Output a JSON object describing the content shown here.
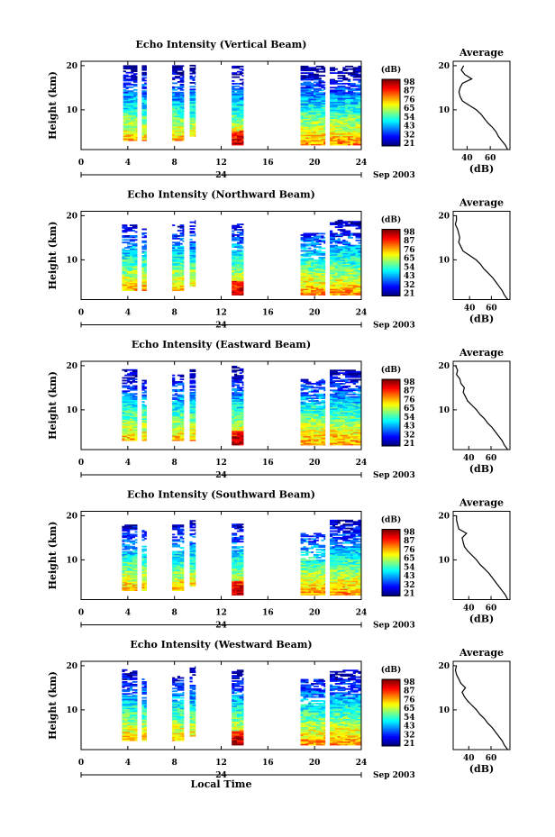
{
  "chart_data": [
    {
      "type": "heatmap",
      "title": "Echo Intensity (Vertical Beam)",
      "ylabel": "Height (km)",
      "ylim": [
        1,
        21
      ],
      "yticks": [
        10,
        20
      ],
      "xlim": [
        0,
        24
      ],
      "xticks": [
        0,
        4,
        8,
        12,
        16,
        20,
        24
      ],
      "date_marker": "24",
      "date_suffix": "Sep 2003",
      "colorbar": {
        "unit": "(dB)",
        "labels": [
          "98",
          "87",
          "76",
          "65",
          "54",
          "43",
          "32",
          "21"
        ]
      },
      "blocks": [
        [
          3.6,
          4.8,
          3,
          20
        ],
        [
          5.2,
          5.6,
          3,
          20
        ],
        [
          7.8,
          8.8,
          3,
          20
        ],
        [
          9.3,
          9.8,
          4,
          20
        ],
        [
          12.9,
          13.9,
          2,
          20
        ],
        [
          18.8,
          20.9,
          2,
          20
        ],
        [
          21.3,
          24.0,
          2,
          20
        ]
      ],
      "profile": {
        "title": "Average",
        "xlabel": "(dB)",
        "xticks": [
          40,
          60
        ],
        "xlim": [
          28,
          77
        ],
        "ylim": [
          1,
          21
        ],
        "yticks": [
          10,
          20
        ],
        "heights": [
          1,
          2,
          3,
          4,
          5,
          6,
          7,
          8,
          9,
          10,
          11,
          12,
          13,
          14,
          15,
          16,
          17,
          18,
          19,
          20
        ],
        "values": [
          75,
          73,
          70,
          67,
          65,
          62,
          58,
          55,
          52,
          48,
          42,
          36,
          34,
          33,
          34,
          36,
          44,
          38,
          35,
          37
        ]
      }
    },
    {
      "type": "heatmap",
      "title": "Echo Intensity (Northward Beam)",
      "ylabel": "Height (km)",
      "ylim": [
        1,
        21
      ],
      "yticks": [
        10,
        20
      ],
      "xlim": [
        0,
        24
      ],
      "xticks": [
        0,
        4,
        8,
        12,
        16,
        20,
        24
      ],
      "date_marker": "24",
      "date_suffix": "Sep 2003",
      "colorbar": {
        "unit": "(dB)",
        "labels": [
          "98",
          "87",
          "76",
          "65",
          "54",
          "43",
          "32",
          "21"
        ]
      },
      "blocks": [
        [
          3.5,
          4.8,
          3,
          18
        ],
        [
          5.2,
          5.6,
          3,
          17
        ],
        [
          7.8,
          8.8,
          3,
          18
        ],
        [
          9.3,
          9.8,
          4,
          19
        ],
        [
          12.9,
          13.9,
          2,
          18
        ],
        [
          18.8,
          20.9,
          2,
          16
        ],
        [
          21.3,
          24.0,
          2,
          19
        ]
      ],
      "profile": {
        "title": "Average",
        "xlabel": "(dB)",
        "xticks": [
          40,
          60
        ],
        "xlim": [
          25,
          77
        ],
        "ylim": [
          1,
          21
        ],
        "yticks": [
          10,
          20
        ],
        "heights": [
          1,
          2,
          3,
          4,
          5,
          6,
          7,
          8,
          9,
          10,
          11,
          12,
          13,
          14,
          15,
          16,
          17,
          18,
          19,
          20
        ],
        "values": [
          75,
          72,
          70,
          67,
          64,
          61,
          57,
          53,
          50,
          46,
          40,
          34,
          32,
          30,
          31,
          30,
          29,
          27,
          28,
          28
        ]
      }
    },
    {
      "type": "heatmap",
      "title": "Echo Intensity (Eastward Beam)",
      "ylabel": "Height (km)",
      "ylim": [
        1,
        21
      ],
      "yticks": [
        10,
        20
      ],
      "xlim": [
        0,
        24
      ],
      "xticks": [
        0,
        4,
        8,
        12,
        16,
        20,
        24
      ],
      "date_marker": "24",
      "date_suffix": "Sep 2003",
      "colorbar": {
        "unit": "(dB)",
        "labels": [
          "98",
          "87",
          "76",
          "65",
          "54",
          "43",
          "32",
          "21"
        ]
      },
      "blocks": [
        [
          3.5,
          4.8,
          3,
          19
        ],
        [
          5.2,
          5.6,
          3,
          17
        ],
        [
          7.8,
          8.8,
          3,
          18
        ],
        [
          9.3,
          9.8,
          3,
          19
        ],
        [
          12.9,
          13.9,
          2,
          20
        ],
        [
          18.8,
          20.9,
          2,
          17
        ],
        [
          21.3,
          24.0,
          2,
          19
        ]
      ],
      "profile": {
        "title": "Average",
        "xlabel": "(dB)",
        "xticks": [
          40,
          60
        ],
        "xlim": [
          26,
          77
        ],
        "ylim": [
          1,
          21
        ],
        "yticks": [
          10,
          20
        ],
        "heights": [
          1,
          2,
          3,
          4,
          5,
          6,
          7,
          8,
          9,
          10,
          11,
          12,
          13,
          14,
          15,
          16,
          17,
          18,
          19,
          20
        ],
        "values": [
          75,
          72,
          70,
          67,
          64,
          61,
          57,
          54,
          50,
          47,
          43,
          39,
          37,
          35,
          36,
          33,
          32,
          29,
          30,
          28
        ]
      }
    },
    {
      "type": "heatmap",
      "title": "Echo Intensity (Southward Beam)",
      "ylabel": "Height (km)",
      "ylim": [
        1,
        21
      ],
      "yticks": [
        10,
        20
      ],
      "xlim": [
        0,
        24
      ],
      "xticks": [
        0,
        4,
        8,
        12,
        16,
        20,
        24
      ],
      "date_marker": "24",
      "date_suffix": "Sep 2003",
      "colorbar": {
        "unit": "(dB)",
        "labels": [
          "98",
          "87",
          "76",
          "65",
          "54",
          "43",
          "32",
          "21"
        ]
      },
      "blocks": [
        [
          3.5,
          4.8,
          3,
          18
        ],
        [
          5.2,
          5.6,
          3,
          17
        ],
        [
          7.8,
          8.8,
          3,
          18
        ],
        [
          9.3,
          9.8,
          4,
          19
        ],
        [
          12.9,
          13.9,
          2,
          18
        ],
        [
          18.8,
          20.9,
          2,
          16
        ],
        [
          21.3,
          24.0,
          2,
          19
        ]
      ],
      "profile": {
        "title": "Average",
        "xlabel": "(dB)",
        "xticks": [
          40,
          60
        ],
        "xlim": [
          26,
          77
        ],
        "ylim": [
          1,
          21
        ],
        "yticks": [
          10,
          20
        ],
        "heights": [
          1,
          2,
          3,
          4,
          5,
          6,
          7,
          8,
          9,
          10,
          11,
          12,
          13,
          14,
          15,
          16,
          17,
          18,
          19,
          20
        ],
        "values": [
          75,
          73,
          70,
          67,
          64,
          61,
          58,
          54,
          50,
          47,
          43,
          39,
          36,
          35,
          34,
          38,
          31,
          30,
          29,
          29
        ]
      }
    },
    {
      "type": "heatmap",
      "title": "Echo Intensity (Westward Beam)",
      "ylabel": "Height (km)",
      "ylim": [
        1,
        21
      ],
      "yticks": [
        10,
        20
      ],
      "xlim": [
        0,
        24
      ],
      "xticks": [
        0,
        4,
        8,
        12,
        16,
        20,
        24
      ],
      "xlabel": "Local Time",
      "date_marker": "24",
      "date_suffix": "Sep 2003",
      "colorbar": {
        "unit": "(dB)",
        "labels": [
          "98",
          "87",
          "76",
          "65",
          "54",
          "43",
          "32",
          "21"
        ]
      },
      "blocks": [
        [
          3.5,
          4.8,
          3,
          19
        ],
        [
          5.2,
          5.6,
          3,
          17
        ],
        [
          7.8,
          8.8,
          3,
          18
        ],
        [
          9.3,
          9.8,
          4,
          20
        ],
        [
          12.9,
          13.9,
          2,
          19
        ],
        [
          18.8,
          20.9,
          2,
          17
        ],
        [
          21.3,
          24.0,
          2,
          19
        ]
      ],
      "profile": {
        "title": "Average",
        "xlabel": "(dB)",
        "xticks": [
          40,
          60
        ],
        "xlim": [
          26,
          77
        ],
        "ylim": [
          1,
          21
        ],
        "yticks": [
          10,
          20
        ],
        "heights": [
          1,
          2,
          3,
          4,
          5,
          6,
          7,
          8,
          9,
          10,
          11,
          12,
          13,
          14,
          15,
          16,
          17,
          18,
          19,
          20
        ],
        "values": [
          75,
          72,
          70,
          67,
          64,
          61,
          57,
          54,
          50,
          47,
          43,
          39,
          36,
          34,
          37,
          33,
          31,
          29,
          28,
          29
        ]
      }
    }
  ]
}
